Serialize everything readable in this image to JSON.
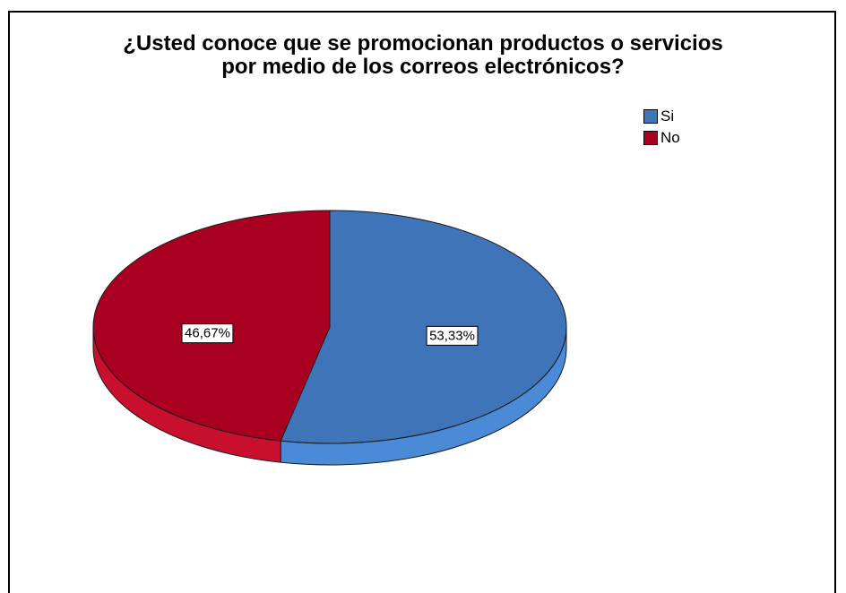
{
  "chart_data": {
    "type": "pie",
    "title_lines": [
      "¿Usted conoce que se promocionan productos o servicios",
      "por medio de los correos electrónicos?"
    ],
    "categories": [
      "Si",
      "No"
    ],
    "values": [
      53.33,
      46.67
    ],
    "value_labels": [
      "53,33%",
      "46,67%"
    ],
    "colors": [
      "#3f74b9",
      "#a90022"
    ],
    "side_colors": [
      "#4a8ad6",
      "#c8102e"
    ],
    "style": "3d-tilted",
    "legend_position": "top-right"
  }
}
